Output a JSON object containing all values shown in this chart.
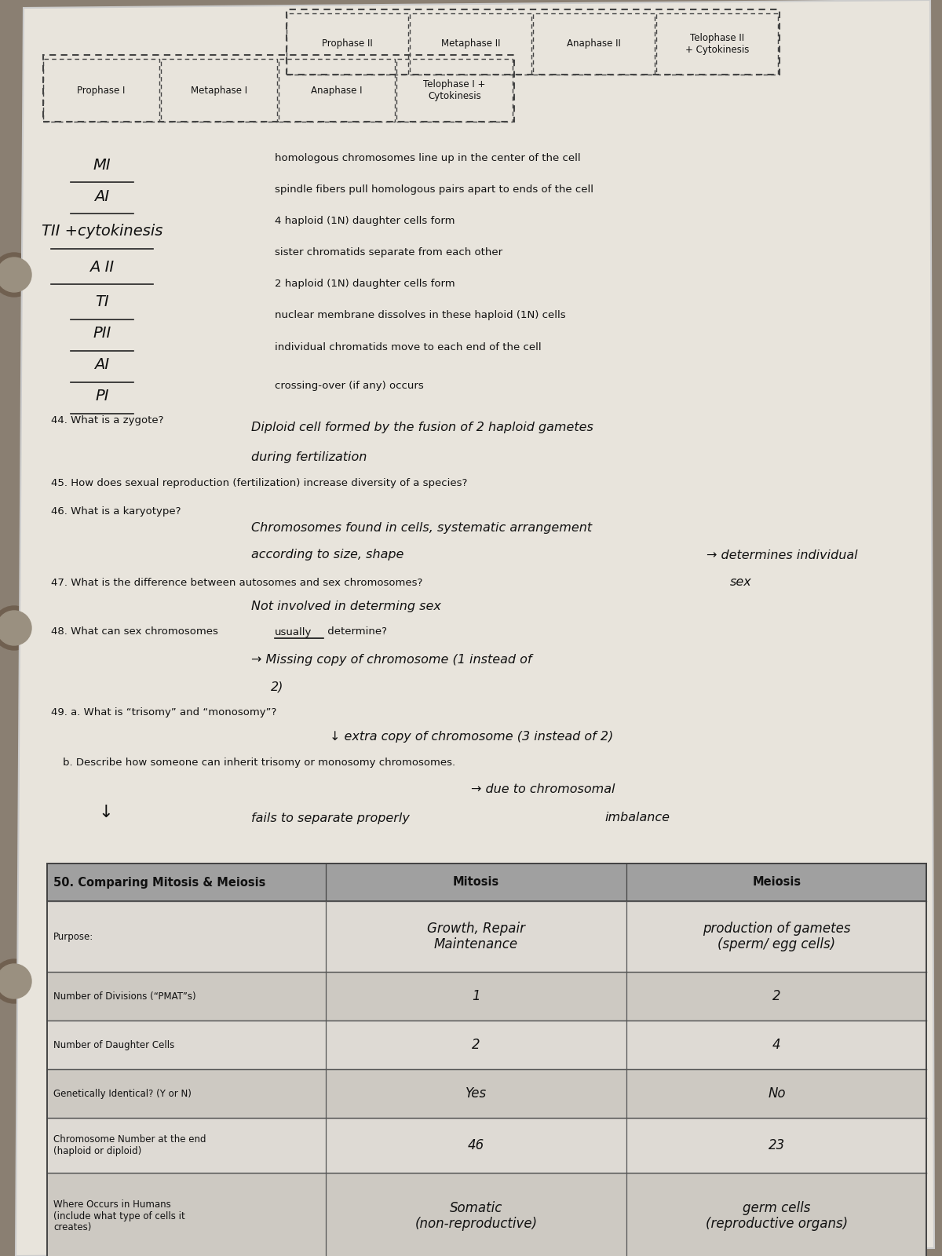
{
  "bg_color": "#8a7f72",
  "paper_color": "#e8e4dc",
  "phases_row1": [
    "Prophase I",
    "Metaphase I",
    "Anaphase I",
    "Telophase I +\nCytokinesis"
  ],
  "phases_row2": [
    "Prophase II",
    "Metaphase II",
    "Anaphase II",
    "Telophase II\n+ Cytokinesis"
  ],
  "left_labels": [
    "MI",
    "AI",
    "TII +cytokinesis",
    "A II",
    "TI",
    "PII",
    "AI",
    "PI"
  ],
  "right_items": [
    "homologous chromosomes line up in the center of the cell",
    "spindle fibers pull homologous pairs apart to ends of the cell",
    "4 haploid (1N) daughter cells form",
    "sister chromatids separate from each other",
    "2 haploid (1N) daughter cells form",
    "nuclear membrane dissolves in these haploid (1N) cells",
    "individual chromatids move to each end of the cell",
    "crossing-over (if any) occurs"
  ],
  "q44_label": "44. What is a zygote?",
  "q45_label": "45. How does sexual reproduction (fertilization) increase diversity of a species?",
  "q46_label": "46. What is a karyotype?",
  "q47_label": "47. What is the difference between autosomes and sex chromosomes?",
  "q48_label_pre": "48. What can sex chromosomes ",
  "q48_label_mid": "usually",
  "q48_label_post": " determine?",
  "q49a_label": "49. a. What is “trisomy” and “monosomy”?",
  "q49b_label": "b. Describe how someone can inherit trisomy or monosomy chromosomes.",
  "q50_label": "50. Comparing Mitosis & Meiosis",
  "table_rows": [
    "Purpose:",
    "Number of Divisions (“PMAT”s)",
    "Number of Daughter Cells",
    "Genetically Identical? (Y or N)",
    "Chromosome Number at the end\n(haploid or diploid)",
    "Where Occurs in Humans\n(include what type of cells it\ncreates)"
  ],
  "mitosis_col": [
    "Growth, Repair\nMaintenance",
    "1",
    "2",
    "Yes",
    "46",
    "Somatic\n(non-reproductive)"
  ],
  "meiosis_col": [
    "production of gametes\n(sperm/ egg cells)",
    "2",
    "4",
    "No",
    "23",
    "germ cells\n(reproductive organs)"
  ]
}
